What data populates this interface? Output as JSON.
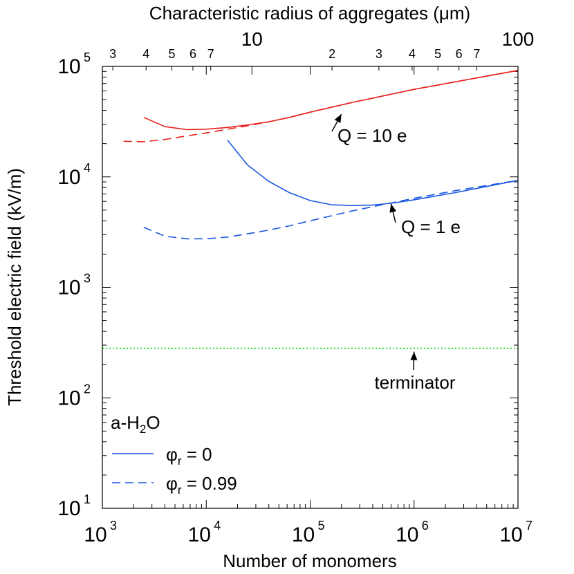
{
  "chart_data": {
    "type": "line",
    "x_scale": "log",
    "y_scale": "log",
    "xlabel": "Number of monomers",
    "ylabel": "Threshold electric field (kV/m)",
    "x2label": "Characteristic radius of aggregates (μm)",
    "xlim": [
      1000,
      10000000
    ],
    "ylim": [
      10,
      100000
    ],
    "x_ticks": [
      {
        "value": 1000,
        "base": "10",
        "exp": "3"
      },
      {
        "value": 10000,
        "base": "10",
        "exp": "4"
      },
      {
        "value": 100000,
        "base": "10",
        "exp": "5"
      },
      {
        "value": 1000000,
        "base": "10",
        "exp": "6"
      },
      {
        "value": 10000000,
        "base": "10",
        "exp": "7"
      }
    ],
    "y_ticks": [
      {
        "value": 10,
        "base": "10",
        "exp": "1"
      },
      {
        "value": 100,
        "base": "10",
        "exp": "2"
      },
      {
        "value": 1000,
        "base": "10",
        "exp": "3"
      },
      {
        "value": 10000,
        "base": "10",
        "exp": "4"
      },
      {
        "value": 100000,
        "base": "10",
        "exp": "5"
      }
    ],
    "top_axis": {
      "scale": "log",
      "range": [
        2.74,
        100
      ],
      "major_labels": [
        {
          "value": 10,
          "label": "10"
        },
        {
          "value": 100,
          "label": "100"
        }
      ],
      "minor_labels": [
        {
          "value": 3,
          "label": "3"
        },
        {
          "value": 4,
          "label": "4"
        },
        {
          "value": 5,
          "label": "5"
        },
        {
          "value": 6,
          "label": "6"
        },
        {
          "value": 7,
          "label": "7"
        },
        {
          "value": 20,
          "label": "2"
        },
        {
          "value": 30,
          "label": "3"
        },
        {
          "value": 40,
          "label": "4"
        },
        {
          "value": 50,
          "label": "5"
        },
        {
          "value": 60,
          "label": "6"
        },
        {
          "value": 70,
          "label": "7"
        }
      ]
    },
    "series": [
      {
        "color": "#e8211d",
        "dash": "solid",
        "x": [
          2500,
          4000,
          6500,
          10000,
          16000,
          25000,
          40000,
          63000,
          100000,
          250000,
          1000000,
          10000000
        ],
        "y": [
          34500,
          28500,
          26800,
          27000,
          28000,
          29500,
          31500,
          34500,
          38500,
          47000,
          62000,
          92000
        ]
      },
      {
        "color": "#e8211d",
        "dash": "dashed",
        "x": [
          1600,
          2500,
          4000,
          6500,
          10000,
          16000,
          25000,
          40000,
          63000,
          100000,
          250000,
          1000000,
          10000000
        ],
        "y": [
          21000,
          20800,
          21800,
          23500,
          25000,
          27000,
          29000,
          31500,
          34500,
          38500,
          47000,
          62000,
          92000
        ]
      },
      {
        "color": "#1a56e0",
        "dash": "solid",
        "x": [
          16000,
          25000,
          40000,
          63000,
          100000,
          160000,
          250000,
          400000,
          630000,
          1000000,
          2500000,
          10000000
        ],
        "y": [
          21500,
          12800,
          9100,
          7200,
          6100,
          5600,
          5500,
          5550,
          5800,
          6200,
          7200,
          9300
        ]
      },
      {
        "color": "#1a56e0",
        "dash": "dashed",
        "x": [
          2500,
          4000,
          6500,
          10000,
          16000,
          25000,
          40000,
          63000,
          100000,
          250000,
          1000000,
          2500000,
          10000000
        ],
        "y": [
          3500,
          2900,
          2750,
          2750,
          2850,
          3050,
          3300,
          3600,
          4000,
          4900,
          6400,
          7500,
          9300
        ]
      },
      {
        "color": "#22dd22",
        "dash": "dotted",
        "x": [
          1000,
          10000000
        ],
        "y": [
          280,
          280
        ]
      }
    ],
    "annotations": [
      {
        "text": "Q = 10 e",
        "arrow_to": {
          "x": 200000,
          "y": 37000
        }
      },
      {
        "text": "Q = 1 e",
        "arrow_to": {
          "x": 600000,
          "y": 5700
        }
      },
      {
        "text": "terminator",
        "arrow_to": {
          "x": 1000000,
          "y": 285
        }
      }
    ],
    "legend": {
      "placement": "lower-left",
      "title_prefix": "a-H",
      "title_sub": "2",
      "title_suffix": "O",
      "entries": [
        {
          "symbol": "φ",
          "sub": "r",
          "text": " = 0",
          "dash": "solid",
          "color": "#1a56e0"
        },
        {
          "symbol": "φ",
          "sub": "r",
          "text": " = 0.99",
          "dash": "dashed",
          "color": "#1a56e0"
        }
      ]
    }
  }
}
